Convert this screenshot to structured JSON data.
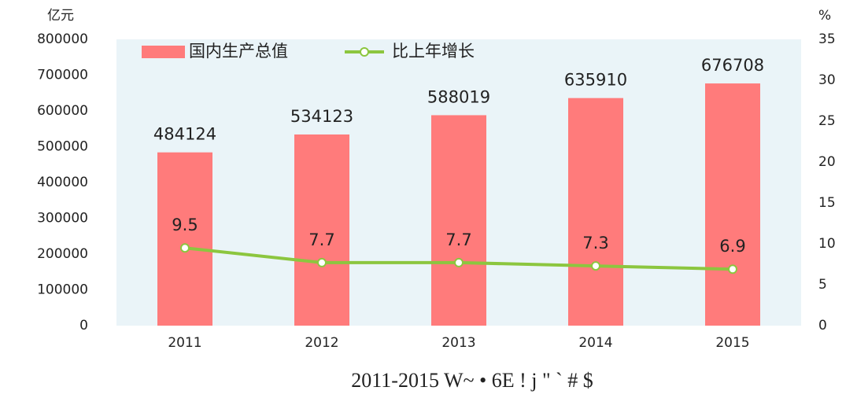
{
  "chart_data": {
    "type": "combo",
    "y_label": "亿元",
    "y2_label": "%",
    "caption": "2011-2015 W~ •   6E ! j \" ` # $",
    "categories": [
      "2011",
      "2012",
      "2013",
      "2014",
      "2015"
    ],
    "series": [
      {
        "name": "国内生产总值",
        "type": "bar",
        "color": "#ff7b7b",
        "values": [
          484124,
          534123,
          588019,
          635910,
          676708
        ]
      },
      {
        "name": "比上年增长",
        "type": "line",
        "axis": "y2",
        "color": "#8cc63f",
        "values": [
          9.5,
          7.7,
          7.7,
          7.3,
          6.9
        ]
      }
    ],
    "ylim": [
      0,
      800000
    ],
    "yticks": [
      0,
      100000,
      200000,
      300000,
      400000,
      500000,
      600000,
      700000,
      800000
    ],
    "y2lim": [
      0,
      35
    ],
    "y2ticks": [
      0,
      5,
      10,
      15,
      20,
      25,
      30,
      35
    ],
    "legend": "top",
    "grid": false
  }
}
